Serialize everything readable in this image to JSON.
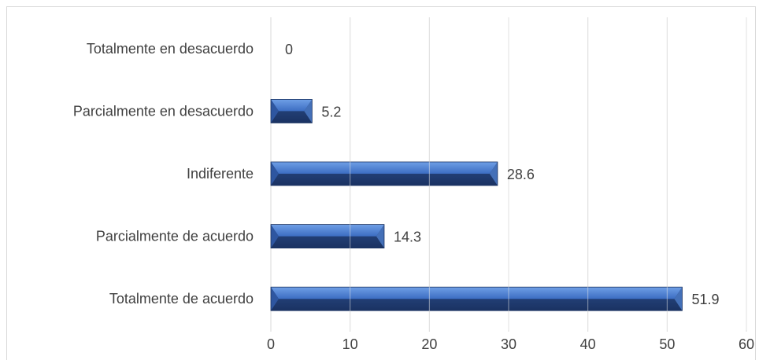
{
  "chart_data": {
    "type": "bar",
    "orientation": "horizontal",
    "categories": [
      "Totalmente en desacuerdo",
      "Parcialmente en desacuerdo",
      "Indiferente",
      "Parcialmente de acuerdo",
      "Totalmente de acuerdo"
    ],
    "values": [
      0,
      5.2,
      28.6,
      14.3,
      51.9
    ],
    "data_labels": [
      "0",
      "5.2",
      "28.6",
      "14.3",
      "51.9"
    ],
    "xlim": [
      0,
      60
    ],
    "ticks": [
      0,
      10,
      20,
      30,
      40,
      50,
      60
    ],
    "tick_labels": [
      "0",
      "10",
      "20",
      "30",
      "40",
      "50",
      "60"
    ],
    "grid": true,
    "legend": "none",
    "title": "",
    "xlabel": "",
    "ylabel": "",
    "bar_color_top": "#5b8fdc",
    "bar_color_bottom": "#1f3a6e"
  }
}
